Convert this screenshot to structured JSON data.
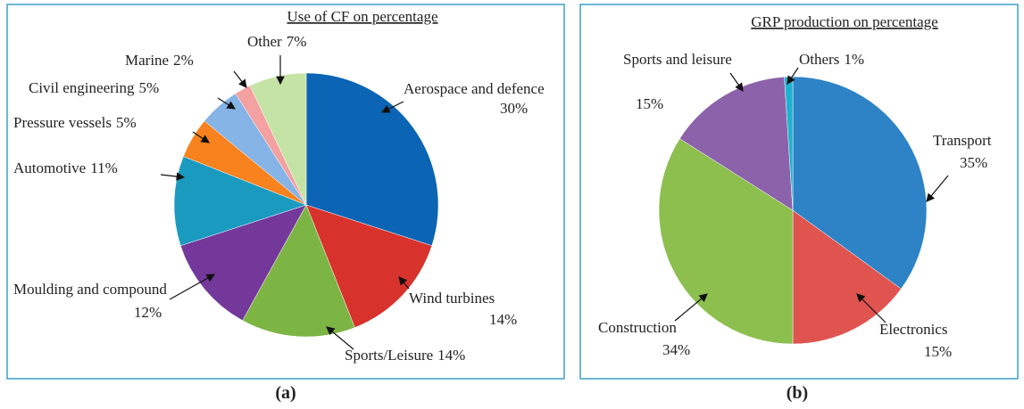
{
  "chart_data": [
    {
      "type": "pie",
      "title": "Use of CF on percentage",
      "caption": "(a)",
      "categories": [
        "Aerospace and defence",
        "Wind turbines",
        "Sports/Leisure",
        "Moulding and compound",
        "Automotive",
        "Pressure vessels",
        "Civil engineering",
        "Marine",
        "Other"
      ],
      "values": [
        30,
        14,
        14,
        12,
        11,
        5,
        5,
        2,
        7
      ],
      "value_labels": [
        "30%",
        "14%",
        "14%",
        "12%",
        "11%",
        "5%",
        "5%",
        "2%",
        "7%"
      ],
      "colors": [
        "#0b64b4",
        "#d8322c",
        "#7db545",
        "#74389a",
        "#1b9ac0",
        "#f7821e",
        "#86b4e6",
        "#f4a1a1",
        "#c6e3a6"
      ]
    },
    {
      "type": "pie",
      "title": "GRP production on percentage",
      "caption": "(b)",
      "categories": [
        "Transport",
        "Electronics",
        "Construction",
        "Sports and leisure",
        "Others"
      ],
      "values": [
        35,
        15,
        34,
        15,
        1
      ],
      "value_labels": [
        "35%",
        "15%",
        "34%",
        "15%",
        "1%"
      ],
      "colors": [
        "#2d83c6",
        "#e05450",
        "#8cbf4e",
        "#8c62aa",
        "#1fb2ce"
      ]
    }
  ]
}
